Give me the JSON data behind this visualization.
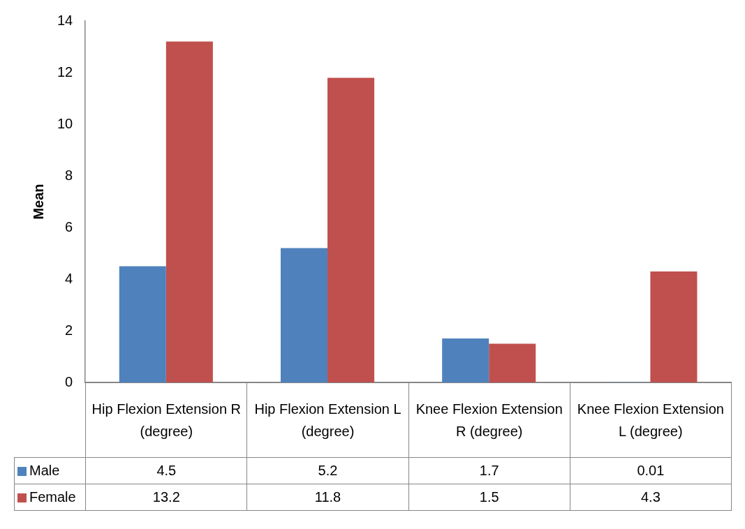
{
  "chart_data": {
    "type": "bar",
    "ylabel": "Mean",
    "categories": [
      "Hip Flexion Extension R (degree)",
      "Hip Flexion Extension L (degree)",
      "Knee Flexion Extension R (degree)",
      "Knee Flexion Extension L (degree)"
    ],
    "series": [
      {
        "name": "Male",
        "color": "#4f81bd",
        "values": [
          4.5,
          5.2,
          1.7,
          0.01
        ]
      },
      {
        "name": "Female",
        "color": "#c0504d",
        "values": [
          13.2,
          11.8,
          1.5,
          4.3
        ]
      }
    ],
    "ylim": [
      0,
      14
    ],
    "yticks": [
      0,
      2,
      4,
      6,
      8,
      10,
      12,
      14
    ],
    "grid": false,
    "legend": "bottom",
    "data_labels": true
  }
}
